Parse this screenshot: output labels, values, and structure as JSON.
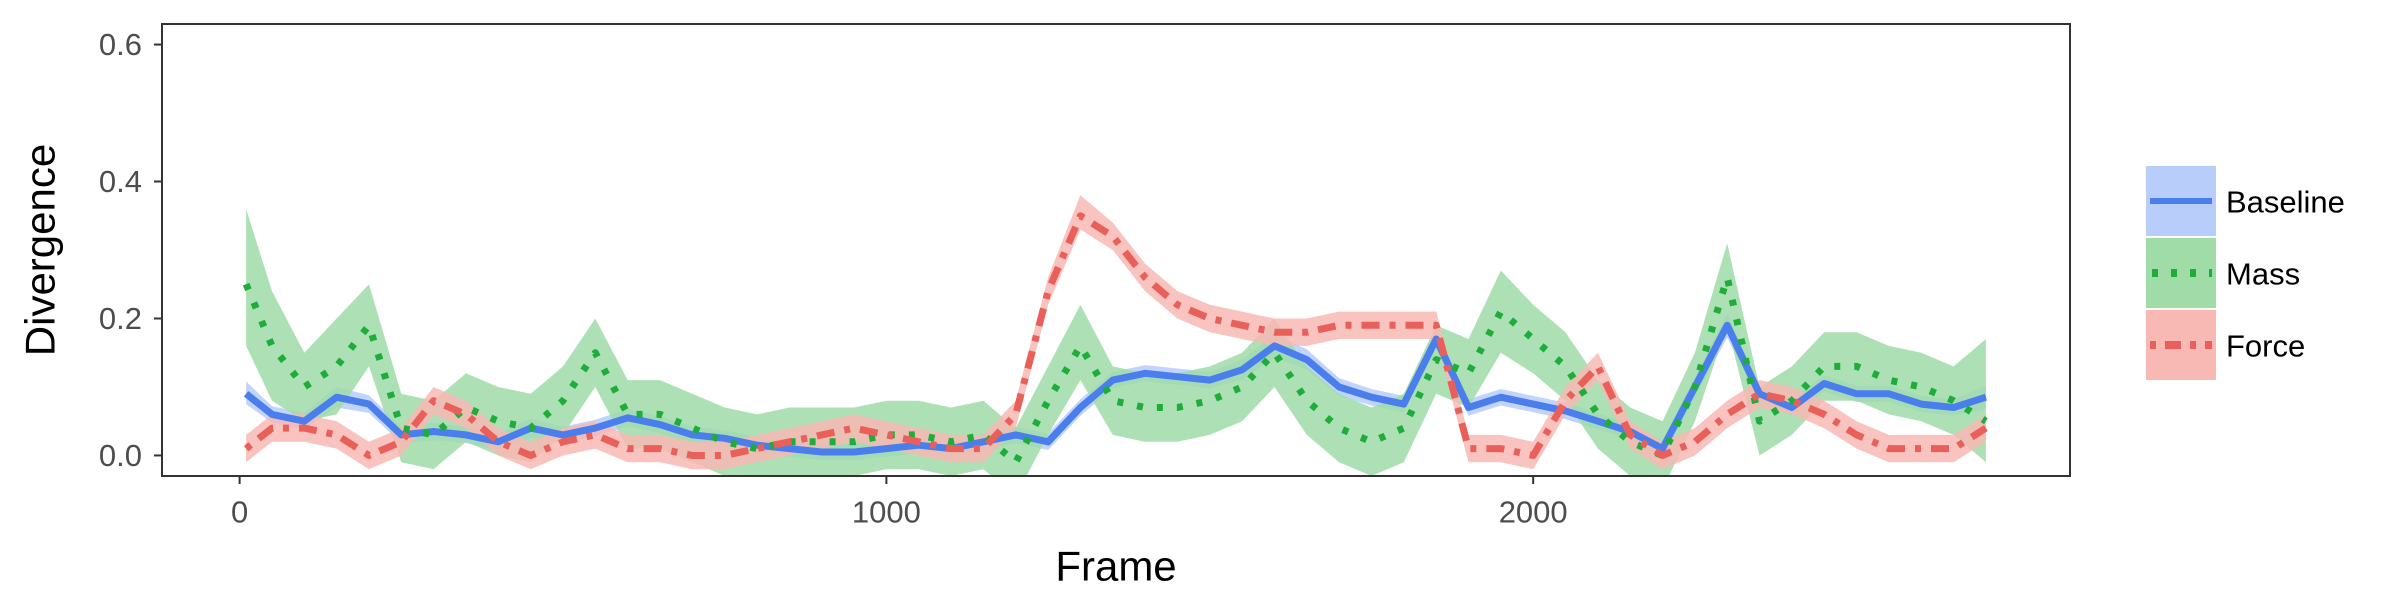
{
  "chart_data": {
    "type": "line",
    "title": "",
    "xlabel": "Frame",
    "ylabel": "Divergence",
    "xlim": [
      -120,
      2830
    ],
    "ylim": [
      -0.03,
      0.63
    ],
    "xticks": [
      0,
      1000,
      2000
    ],
    "xtick_labels": [
      "0",
      "1000",
      "2000"
    ],
    "yticks": [
      0.0,
      0.2,
      0.4,
      0.6
    ],
    "ytick_labels": [
      "0.0",
      "0.2",
      "0.4",
      "0.6"
    ],
    "grid": false,
    "legend_position": "right",
    "series": [
      {
        "name": "Baseline",
        "color": "#4a7eed",
        "fill": "#b9cdfb",
        "dash": "solid",
        "x": [
          10,
          50,
          100,
          150,
          200,
          250,
          300,
          350,
          400,
          450,
          500,
          550,
          600,
          650,
          700,
          750,
          800,
          850,
          900,
          950,
          1000,
          1050,
          1100,
          1150,
          1200,
          1250,
          1300,
          1350,
          1400,
          1450,
          1500,
          1550,
          1600,
          1650,
          1700,
          1750,
          1800,
          1850,
          1900,
          1950,
          2000,
          2050,
          2100,
          2150,
          2200,
          2250,
          2300,
          2350,
          2400,
          2450,
          2500,
          2550,
          2600,
          2650,
          2700
        ],
        "y": [
          0.09,
          0.06,
          0.05,
          0.085,
          0.075,
          0.03,
          0.035,
          0.03,
          0.02,
          0.04,
          0.03,
          0.04,
          0.055,
          0.045,
          0.03,
          0.025,
          0.015,
          0.01,
          0.005,
          0.005,
          0.01,
          0.015,
          0.01,
          0.02,
          0.03,
          0.02,
          0.07,
          0.11,
          0.12,
          0.115,
          0.11,
          0.125,
          0.16,
          0.14,
          0.1,
          0.085,
          0.075,
          0.17,
          0.07,
          0.085,
          0.075,
          0.065,
          0.05,
          0.035,
          0.01,
          0.1,
          0.19,
          0.09,
          0.07,
          0.105,
          0.09,
          0.09,
          0.075,
          0.07,
          0.085
        ],
        "lower": [
          0.075,
          0.048,
          0.038,
          0.07,
          0.062,
          0.018,
          0.022,
          0.018,
          0.008,
          0.026,
          0.018,
          0.028,
          0.042,
          0.032,
          0.018,
          0.013,
          0.003,
          -0.002,
          -0.007,
          -0.007,
          -0.002,
          0.003,
          -0.002,
          0.008,
          0.018,
          0.008,
          0.058,
          0.098,
          0.108,
          0.103,
          0.098,
          0.11,
          0.143,
          0.125,
          0.087,
          0.073,
          0.063,
          0.155,
          0.058,
          0.073,
          0.063,
          0.053,
          0.038,
          0.023,
          -0.002,
          0.085,
          0.172,
          0.078,
          0.058,
          0.093,
          0.078,
          0.078,
          0.063,
          0.058,
          0.068
        ],
        "upper": [
          0.108,
          0.072,
          0.062,
          0.1,
          0.088,
          0.042,
          0.048,
          0.042,
          0.032,
          0.054,
          0.042,
          0.052,
          0.068,
          0.058,
          0.042,
          0.037,
          0.027,
          0.022,
          0.017,
          0.017,
          0.022,
          0.027,
          0.022,
          0.032,
          0.042,
          0.032,
          0.082,
          0.122,
          0.132,
          0.127,
          0.122,
          0.14,
          0.177,
          0.155,
          0.113,
          0.097,
          0.087,
          0.185,
          0.082,
          0.097,
          0.087,
          0.077,
          0.062,
          0.047,
          0.022,
          0.115,
          0.208,
          0.102,
          0.082,
          0.117,
          0.102,
          0.102,
          0.087,
          0.082,
          0.102
        ]
      },
      {
        "name": "Mass",
        "color": "#1ead3b",
        "fill": "#9fdca8",
        "dash": "dotted",
        "x": [
          10,
          50,
          100,
          150,
          200,
          250,
          300,
          350,
          400,
          450,
          500,
          550,
          600,
          650,
          700,
          750,
          800,
          850,
          900,
          950,
          1000,
          1050,
          1100,
          1150,
          1200,
          1250,
          1300,
          1350,
          1400,
          1450,
          1500,
          1550,
          1600,
          1650,
          1700,
          1750,
          1800,
          1850,
          1900,
          1950,
          2000,
          2050,
          2100,
          2150,
          2200,
          2250,
          2300,
          2350,
          2400,
          2450,
          2500,
          2550,
          2600,
          2650,
          2700
        ],
        "y": [
          0.25,
          0.16,
          0.1,
          0.13,
          0.19,
          0.04,
          0.03,
          0.07,
          0.05,
          0.04,
          0.08,
          0.15,
          0.06,
          0.06,
          0.04,
          0.02,
          0.01,
          0.02,
          0.02,
          0.02,
          0.03,
          0.03,
          0.02,
          0.03,
          -0.01,
          0.08,
          0.16,
          0.08,
          0.07,
          0.07,
          0.08,
          0.1,
          0.15,
          0.08,
          0.04,
          0.02,
          0.04,
          0.14,
          0.12,
          0.21,
          0.17,
          0.13,
          0.06,
          0.02,
          0.0,
          0.1,
          0.26,
          0.05,
          0.08,
          0.13,
          0.13,
          0.11,
          0.1,
          0.08,
          0.05
        ],
        "lower": [
          0.16,
          0.08,
          0.05,
          0.06,
          0.13,
          -0.01,
          -0.02,
          0.02,
          0.0,
          -0.01,
          0.03,
          0.1,
          0.01,
          0.01,
          -0.01,
          -0.03,
          -0.04,
          -0.03,
          -0.03,
          -0.03,
          -0.02,
          -0.02,
          -0.03,
          -0.02,
          -0.06,
          0.03,
          0.11,
          0.03,
          0.02,
          0.02,
          0.03,
          0.05,
          0.1,
          0.03,
          -0.01,
          -0.03,
          -0.01,
          0.09,
          0.07,
          0.15,
          0.12,
          0.08,
          0.01,
          -0.03,
          -0.05,
          0.05,
          0.19,
          0.0,
          0.03,
          0.08,
          0.08,
          0.06,
          0.05,
          0.03,
          -0.01
        ],
        "upper": [
          0.36,
          0.24,
          0.15,
          0.2,
          0.25,
          0.09,
          0.08,
          0.12,
          0.1,
          0.09,
          0.13,
          0.2,
          0.11,
          0.11,
          0.09,
          0.07,
          0.06,
          0.07,
          0.07,
          0.07,
          0.08,
          0.08,
          0.07,
          0.08,
          0.04,
          0.13,
          0.22,
          0.13,
          0.12,
          0.12,
          0.13,
          0.15,
          0.2,
          0.13,
          0.09,
          0.07,
          0.09,
          0.19,
          0.17,
          0.27,
          0.22,
          0.18,
          0.11,
          0.07,
          0.05,
          0.15,
          0.31,
          0.1,
          0.13,
          0.18,
          0.18,
          0.16,
          0.15,
          0.13,
          0.17
        ]
      },
      {
        "name": "Force",
        "color": "#e9605b",
        "fill": "#f8b8b4",
        "dash": "dashdot",
        "x": [
          10,
          50,
          100,
          150,
          200,
          250,
          300,
          350,
          400,
          450,
          500,
          550,
          600,
          650,
          700,
          750,
          800,
          850,
          900,
          950,
          1000,
          1050,
          1100,
          1150,
          1200,
          1250,
          1300,
          1350,
          1400,
          1450,
          1500,
          1550,
          1600,
          1650,
          1700,
          1750,
          1800,
          1850,
          1900,
          1950,
          2000,
          2050,
          2100,
          2150,
          2200,
          2250,
          2300,
          2350,
          2400,
          2450,
          2500,
          2550,
          2600,
          2650,
          2700
        ],
        "y": [
          0.01,
          0.04,
          0.04,
          0.03,
          0.0,
          0.02,
          0.08,
          0.06,
          0.02,
          0.0,
          0.02,
          0.03,
          0.01,
          0.01,
          0.0,
          0.0,
          0.01,
          0.02,
          0.03,
          0.04,
          0.03,
          0.02,
          0.01,
          0.01,
          0.06,
          0.24,
          0.35,
          0.32,
          0.26,
          0.22,
          0.2,
          0.19,
          0.18,
          0.18,
          0.19,
          0.19,
          0.19,
          0.19,
          0.01,
          0.01,
          0.0,
          0.08,
          0.13,
          0.03,
          0.0,
          0.02,
          0.06,
          0.09,
          0.08,
          0.06,
          0.03,
          0.01,
          0.01,
          0.01,
          0.04
        ],
        "lower": [
          -0.01,
          0.02,
          0.02,
          0.01,
          -0.02,
          0.0,
          0.06,
          0.04,
          0.0,
          -0.02,
          0.0,
          0.01,
          -0.01,
          -0.01,
          -0.02,
          -0.02,
          -0.01,
          0.0,
          0.01,
          0.02,
          0.01,
          0.0,
          -0.01,
          -0.01,
          0.04,
          0.22,
          0.33,
          0.3,
          0.24,
          0.2,
          0.18,
          0.17,
          0.16,
          0.16,
          0.17,
          0.17,
          0.17,
          0.17,
          -0.01,
          -0.01,
          -0.02,
          0.06,
          0.11,
          0.01,
          -0.02,
          0.0,
          0.04,
          0.07,
          0.06,
          0.04,
          0.01,
          -0.01,
          -0.01,
          -0.01,
          0.02
        ],
        "upper": [
          0.03,
          0.06,
          0.06,
          0.05,
          0.02,
          0.04,
          0.1,
          0.08,
          0.04,
          0.02,
          0.04,
          0.05,
          0.03,
          0.03,
          0.02,
          0.02,
          0.03,
          0.04,
          0.05,
          0.06,
          0.05,
          0.04,
          0.03,
          0.03,
          0.08,
          0.26,
          0.38,
          0.34,
          0.28,
          0.24,
          0.22,
          0.21,
          0.2,
          0.2,
          0.21,
          0.21,
          0.21,
          0.21,
          0.03,
          0.03,
          0.02,
          0.1,
          0.15,
          0.05,
          0.02,
          0.04,
          0.08,
          0.11,
          0.1,
          0.08,
          0.05,
          0.03,
          0.03,
          0.03,
          0.06
        ]
      }
    ]
  }
}
